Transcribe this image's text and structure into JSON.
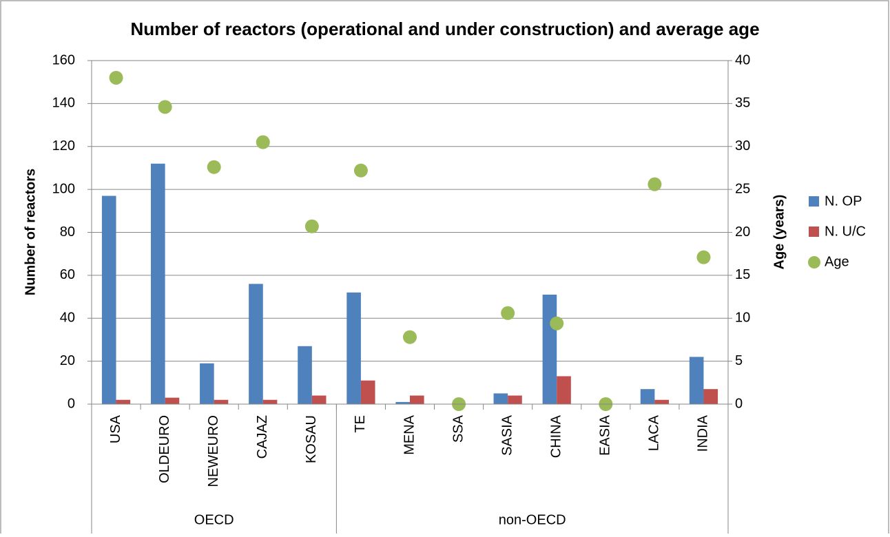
{
  "chart_data": {
    "type": "bar",
    "title": "Number of reactors (operational and under construction) and average age",
    "y_label": "Number of reactors",
    "y2_label": "Age (years)",
    "groups": [
      {
        "name": "OECD",
        "categories": [
          "USA",
          "OLDEURO",
          "NEWEURO",
          "CAJAZ",
          "KOSAU"
        ]
      },
      {
        "name": "non-OECD",
        "categories": [
          "TE",
          "MENA",
          "SSA",
          "SASIA",
          "CHINA",
          "EASIA",
          "LACA",
          "INDIA"
        ]
      }
    ],
    "series": [
      {
        "name": "N. OP",
        "color": "#4f81bd",
        "values": [
          97,
          112,
          19,
          56,
          27,
          52,
          1,
          0,
          5,
          51,
          0,
          7,
          22
        ]
      },
      {
        "name": "N. U/C",
        "color": "#c0504d",
        "values": [
          2,
          3,
          2,
          2,
          4,
          11,
          4,
          0,
          4,
          13,
          0,
          2,
          7
        ]
      },
      {
        "name": "Age",
        "type": "scatter",
        "axis": "y2",
        "color": "#9bbb59",
        "values": [
          38,
          34.6,
          27.6,
          30.5,
          20.7,
          27.2,
          7.8,
          0,
          10.6,
          9.4,
          0,
          25.6,
          17.1
        ]
      }
    ],
    "ylim": [
      0,
      160
    ],
    "yticks": [
      0,
      20,
      40,
      60,
      80,
      100,
      120,
      140,
      160
    ],
    "y2lim": [
      0,
      40
    ],
    "y2ticks": [
      0,
      5,
      10,
      15,
      20,
      25,
      30,
      35,
      40
    ],
    "grid": true,
    "legend": "right"
  }
}
